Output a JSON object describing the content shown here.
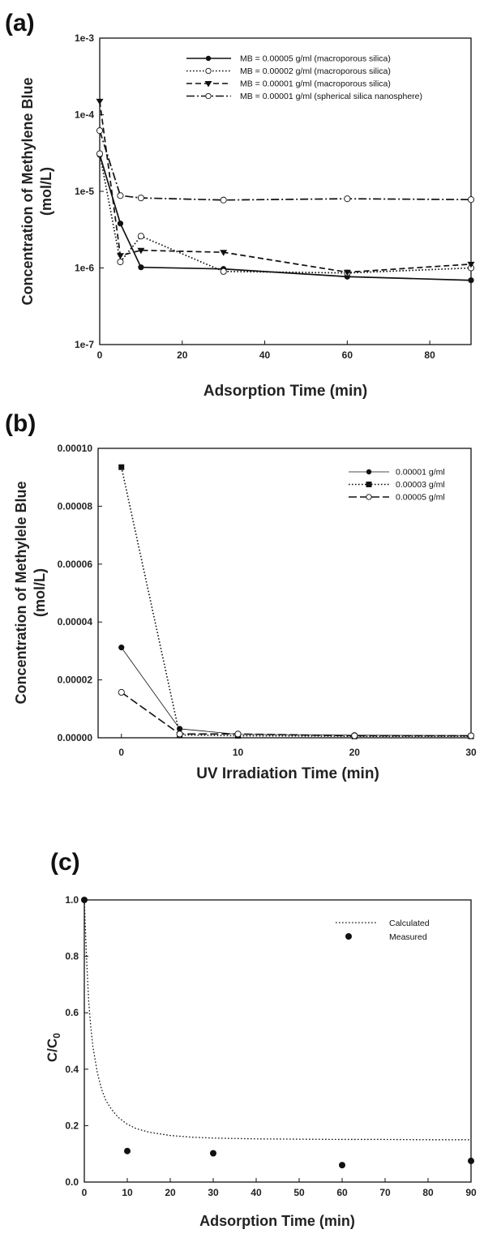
{
  "chart_data": [
    {
      "panel_label": "(a)",
      "type": "line",
      "yscale": "log",
      "xlabel": "Adsorption Time (min)",
      "ylabel": [
        "Concentration of Methylene Blue",
        "(mol/L)"
      ],
      "xlim": [
        0,
        90
      ],
      "ylim": [
        1e-07,
        0.001
      ],
      "xticks": [
        0,
        20,
        40,
        60,
        80
      ],
      "yticks": [
        {
          "value": 1e-07,
          "label": "1e-7"
        },
        {
          "value": 1e-06,
          "label": "1e-6"
        },
        {
          "value": 1e-05,
          "label": "1e-5"
        },
        {
          "value": 0.0001,
          "label": "1e-4"
        },
        {
          "value": 0.001,
          "label": "1e-3"
        }
      ],
      "legend_position": "top-right",
      "series": [
        {
          "name": "MB = 0.00005 g/ml (macroporous silica)",
          "line": "solid",
          "marker": "filled-circle",
          "x": [
            0,
            5,
            10,
            30,
            60,
            90
          ],
          "y": [
            3e-05,
            3.8e-06,
            1.02e-06,
            9.7e-07,
            7.7e-07,
            6.9e-07
          ]
        },
        {
          "name": "MB = 0.00002 g/ml (macroporous silica)",
          "line": "dotted",
          "marker": "open-circle",
          "x": [
            0,
            5,
            10,
            30,
            60,
            90
          ],
          "y": [
            3.1e-05,
            1.2e-06,
            2.6e-06,
            9e-07,
            8.6e-07,
            1e-06
          ]
        },
        {
          "name": "MB = 0.00001 g/ml (macroporous silica)",
          "line": "dashed",
          "marker": "filled-triangle-down",
          "x": [
            0,
            5,
            10,
            30,
            60,
            90
          ],
          "y": [
            0.00015,
            1.45e-06,
            1.7e-06,
            1.6e-06,
            8.8e-07,
            1.12e-06
          ]
        },
        {
          "name": "MB = 0.00001 g/ml (spherical silica nanosphere)",
          "line": "dashdot",
          "marker": "open-circle",
          "x": [
            0,
            5,
            10,
            30,
            60,
            90
          ],
          "y": [
            6.2e-05,
            8.8e-06,
            8.2e-06,
            7.7e-06,
            8e-06,
            7.8e-06
          ]
        }
      ]
    },
    {
      "panel_label": "(b)",
      "type": "line",
      "yscale": "linear",
      "xlabel": "UV Irradiation Time (min)",
      "ylabel": [
        "Concentration of Methylele Blue",
        "(mol/L)"
      ],
      "xlim": [
        -2,
        30
      ],
      "ylim": [
        0,
        0.0001
      ],
      "xticks": [
        0,
        10,
        20,
        30
      ],
      "yticks": [
        {
          "value": 0,
          "label": "0.00000"
        },
        {
          "value": 2e-05,
          "label": "0.00002"
        },
        {
          "value": 4e-05,
          "label": "0.00004"
        },
        {
          "value": 6e-05,
          "label": "0.00006"
        },
        {
          "value": 8e-05,
          "label": "0.00008"
        },
        {
          "value": 0.0001,
          "label": "0.00010"
        }
      ],
      "legend_position": "top-right",
      "series": [
        {
          "name": "0.00001 g/ml",
          "line": "thin-solid",
          "marker": "filled-circle",
          "x": [
            0,
            5,
            10,
            20,
            30
          ],
          "y": [
            3.12e-05,
            3.1e-06,
            1.2e-06,
            9e-07,
            8e-07
          ]
        },
        {
          "name": "0.00003 g/ml",
          "line": "dotted",
          "marker": "filled-square",
          "x": [
            0,
            5,
            10,
            20,
            30
          ],
          "y": [
            9.35e-05,
            1e-06,
            7e-07,
            5e-07,
            5e-07
          ]
        },
        {
          "name": "0.00005 g/ml",
          "line": "long-dash",
          "marker": "open-circle",
          "x": [
            0,
            5,
            10,
            20,
            30
          ],
          "y": [
            1.57e-05,
            1.3e-06,
            1.3e-06,
            7e-07,
            7e-07
          ]
        }
      ]
    },
    {
      "panel_label": "(c)",
      "type": "scatter",
      "yscale": "linear",
      "xlabel": "Adsorption Time (min)",
      "ylabel_main": "C/C",
      "ylabel_sub": "0",
      "xlim": [
        0,
        90
      ],
      "ylim": [
        0,
        1.0
      ],
      "xticks": [
        0,
        10,
        20,
        30,
        40,
        50,
        60,
        70,
        80,
        90
      ],
      "yticks": [
        {
          "value": 0,
          "label": "0.0"
        },
        {
          "value": 0.2,
          "label": "0.2"
        },
        {
          "value": 0.4,
          "label": "0.4"
        },
        {
          "value": 0.6,
          "label": "0.6"
        },
        {
          "value": 0.8,
          "label": "0.8"
        },
        {
          "value": 1.0,
          "label": "1.0"
        }
      ],
      "legend_position": "top-right",
      "calculated": {
        "name": "Calculated",
        "line": "dotted",
        "x": [
          0,
          0.5,
          1,
          1.5,
          2,
          3,
          4,
          5,
          6,
          7,
          8,
          10,
          12,
          15,
          20,
          25,
          30,
          40,
          50,
          60,
          70,
          80,
          90
        ],
        "y": [
          1.0,
          0.8,
          0.645,
          0.55,
          0.48,
          0.39,
          0.33,
          0.29,
          0.265,
          0.245,
          0.228,
          0.205,
          0.19,
          0.177,
          0.165,
          0.159,
          0.156,
          0.153,
          0.152,
          0.151,
          0.151,
          0.15,
          0.15
        ]
      },
      "measured": {
        "name": "Measured",
        "marker": "filled-circle",
        "x": [
          0,
          10,
          30,
          60,
          90
        ],
        "y": [
          1.0,
          0.11,
          0.102,
          0.06,
          0.075
        ]
      }
    }
  ]
}
